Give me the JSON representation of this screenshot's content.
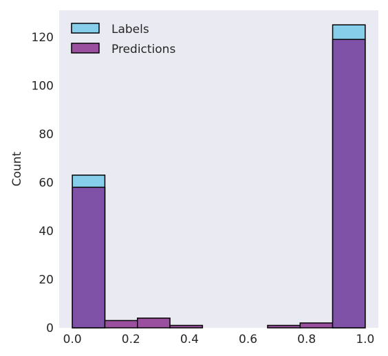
{
  "chart_data": {
    "type": "bar",
    "subtype": "histogram",
    "title": "",
    "xlabel": "",
    "ylabel": "Count",
    "xlim": [
      -0.045,
      1.045
    ],
    "ylim": [
      0,
      131
    ],
    "xticks": [
      0.0,
      0.2,
      0.4,
      0.6,
      0.8,
      1.0
    ],
    "xtick_labels": [
      "0.0",
      "0.2",
      "0.4",
      "0.6",
      "0.8",
      "1.0"
    ],
    "yticks": [
      0,
      20,
      40,
      60,
      80,
      100,
      120
    ],
    "ytick_labels": [
      "0",
      "20",
      "40",
      "60",
      "80",
      "100",
      "120"
    ],
    "bin_edges": [
      0.0,
      0.1111,
      0.2222,
      0.3333,
      0.4444,
      0.5556,
      0.6667,
      0.7778,
      0.8889,
      1.0
    ],
    "series": [
      {
        "name": "Labels",
        "color": "#87ceeb",
        "values": [
          63,
          0,
          0,
          0,
          0,
          0,
          0,
          0,
          125
        ]
      },
      {
        "name": "Predictions",
        "color": "#9b4f9f",
        "values": [
          58,
          3,
          4,
          1,
          0,
          0,
          1,
          2,
          119
        ]
      }
    ],
    "overlap_color": "#7f52a8",
    "edge_color": "#000000",
    "background_color": "#eaeaf2",
    "grid": false,
    "legend_position": "top-left"
  }
}
